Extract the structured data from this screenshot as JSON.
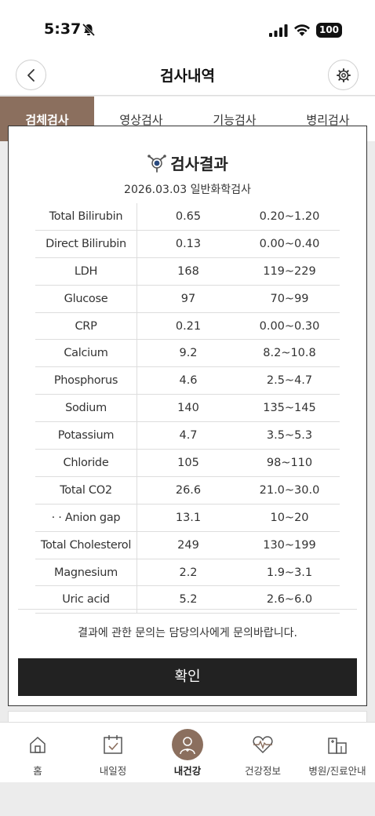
{
  "status": {
    "time": "5:37",
    "battery": "100"
  },
  "header": {
    "title": "검사내역"
  },
  "tabs": [
    {
      "label": "검체검사",
      "active": true
    },
    {
      "label": "영상검사",
      "active": false
    },
    {
      "label": "기능검사",
      "active": false
    },
    {
      "label": "병리검사",
      "active": false
    }
  ],
  "modal": {
    "title": "검사결과",
    "subtitle": "2026.03.03 일반화학검사",
    "results": [
      {
        "name": "Total Bilirubin",
        "value": "0.65",
        "range": "0.20~1.20"
      },
      {
        "name": "Direct Bilirubin",
        "value": "0.13",
        "range": "0.00~0.40"
      },
      {
        "name": "LDH",
        "value": "168",
        "range": "119~229"
      },
      {
        "name": "Glucose",
        "value": "97",
        "range": "70~99"
      },
      {
        "name": "CRP",
        "value": "0.21",
        "range": "0.00~0.30"
      },
      {
        "name": "Calcium",
        "value": "9.2",
        "range": "8.2~10.8"
      },
      {
        "name": "Phosphorus",
        "value": "4.6",
        "range": "2.5~4.7"
      },
      {
        "name": "Sodium",
        "value": "140",
        "range": "135~145"
      },
      {
        "name": "Potassium",
        "value": "4.7",
        "range": "3.5~5.3"
      },
      {
        "name": "Chloride",
        "value": "105",
        "range": "98~110"
      },
      {
        "name": "Total CO2",
        "value": "26.6",
        "range": "21.0~30.0"
      },
      {
        "name": "· · Anion gap",
        "value": "13.1",
        "range": "10~20"
      },
      {
        "name": "Total Cholesterol",
        "value": "249",
        "range": "130~199"
      },
      {
        "name": "Magnesium",
        "value": "2.2",
        "range": "1.9~3.1"
      },
      {
        "name": "Uric acid",
        "value": "5.2",
        "range": "2.6~6.0"
      }
    ],
    "notice": "결과에 관한 문의는 담당의사에게 문의바랍니다.",
    "confirm_label": "확인"
  },
  "nav": [
    {
      "label": "홈",
      "icon": "home-icon",
      "active": false
    },
    {
      "label": "내일정",
      "icon": "calendar-icon",
      "active": false
    },
    {
      "label": "내건강",
      "icon": "person-icon",
      "active": true
    },
    {
      "label": "건강정보",
      "icon": "heart-pulse-icon",
      "active": false
    },
    {
      "label": "병원/진료안내",
      "icon": "hospital-icon",
      "active": false
    }
  ],
  "colors": {
    "accent": "#8b6f5e",
    "button": "#222222"
  }
}
